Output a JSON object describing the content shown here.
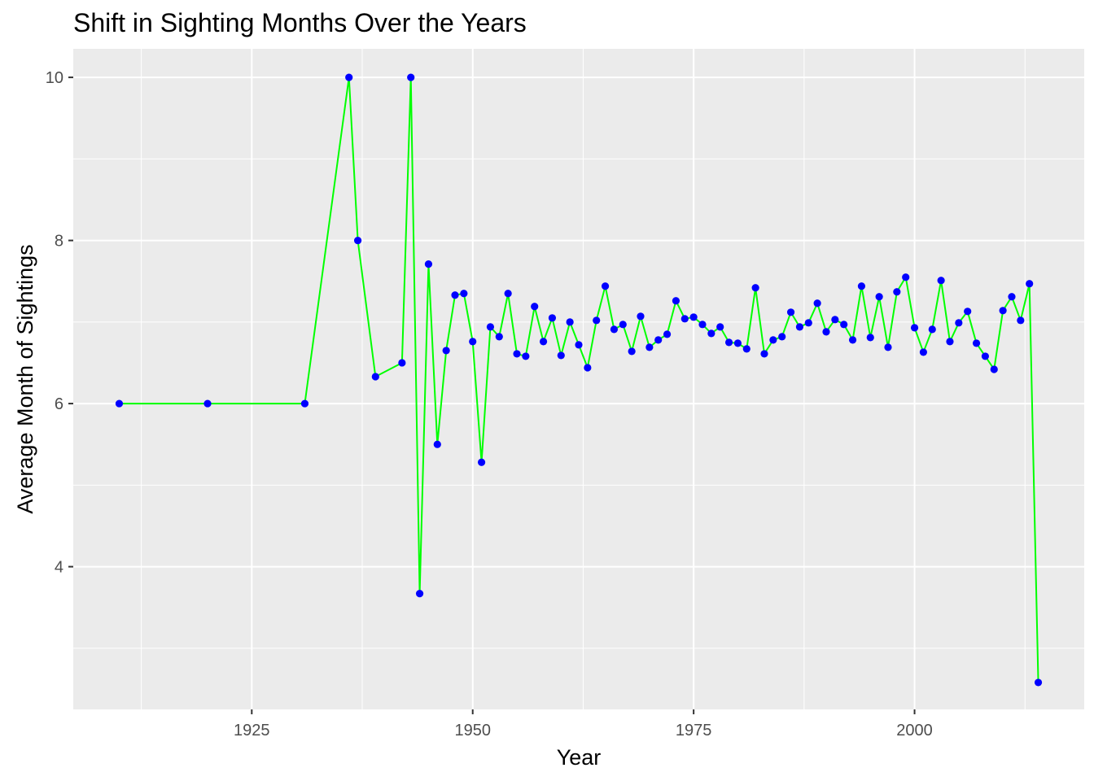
{
  "chart_data": {
    "type": "line",
    "title": "Shift in Sighting Months Over the Years",
    "xlabel": "Year",
    "ylabel": "Average Month of Sightings",
    "xlim": [
      1904.8,
      2019.2
    ],
    "ylim": [
      2.25,
      10.35
    ],
    "x_ticks": [
      1925,
      1950,
      1975,
      2000
    ],
    "y_ticks": [
      4,
      6,
      8,
      10
    ],
    "grid": true,
    "line_color": "#00ff00",
    "point_color": "#0000ff",
    "panel_background": "#ebebeb",
    "series": [
      {
        "x": [
          1910,
          1920,
          1931,
          1936,
          1937,
          1939,
          1942,
          1943,
          1944,
          1945,
          1946,
          1947,
          1948,
          1949,
          1950,
          1951,
          1952,
          1953,
          1954,
          1955,
          1956,
          1957,
          1958,
          1959,
          1960,
          1961,
          1962,
          1963,
          1964,
          1965,
          1966,
          1967,
          1968,
          1969,
          1970,
          1971,
          1972,
          1973,
          1974,
          1975,
          1976,
          1977,
          1978,
          1979,
          1980,
          1981,
          1982,
          1983,
          1984,
          1985,
          1986,
          1987,
          1988,
          1989,
          1990,
          1991,
          1992,
          1993,
          1994,
          1995,
          1996,
          1997,
          1998,
          1999,
          2000,
          2001,
          2002,
          2003,
          2004,
          2005,
          2006,
          2007,
          2008,
          2009,
          2010,
          2011,
          2012,
          2013,
          2014
        ],
        "values": [
          6.0,
          6.0,
          6.0,
          10.0,
          8.0,
          6.33,
          6.5,
          10.0,
          3.67,
          7.71,
          5.5,
          6.65,
          7.33,
          7.35,
          6.76,
          5.28,
          6.94,
          6.82,
          7.35,
          6.61,
          6.58,
          7.19,
          6.76,
          7.05,
          6.59,
          7.0,
          6.72,
          6.44,
          7.02,
          7.44,
          6.91,
          6.97,
          6.64,
          7.07,
          6.69,
          6.78,
          6.85,
          7.26,
          7.04,
          7.06,
          6.97,
          6.86,
          6.94,
          6.75,
          6.74,
          6.67,
          7.42,
          6.61,
          6.78,
          6.82,
          7.12,
          6.94,
          6.99,
          7.23,
          6.88,
          7.03,
          6.97,
          6.78,
          7.44,
          6.81,
          7.31,
          6.69,
          7.37,
          7.55,
          6.93,
          6.63,
          6.91,
          7.51,
          6.76,
          6.99,
          7.13,
          6.74,
          6.58,
          6.42,
          7.14,
          7.31,
          7.02,
          7.47,
          2.58
        ]
      }
    ]
  }
}
